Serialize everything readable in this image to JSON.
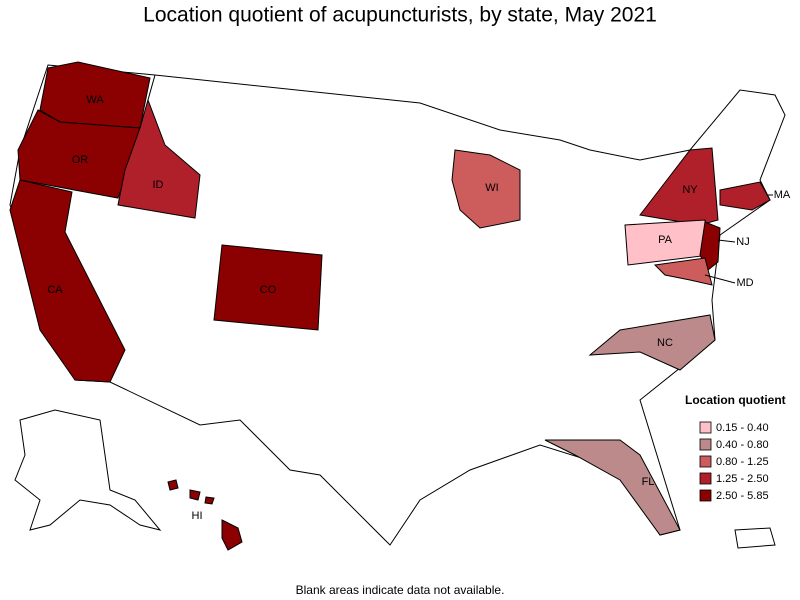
{
  "title": "Location quotient of acupuncturists, by state, May 2021",
  "legend": {
    "title": "Location quotient",
    "items": [
      {
        "label": "0.15 - 0.40",
        "color": "#ffc0c8"
      },
      {
        "label": "0.40 - 0.80",
        "color": "#bc8a8a"
      },
      {
        "label": "0.80 - 1.25",
        "color": "#cd5c5c"
      },
      {
        "label": "1.25 - 2.50",
        "color": "#b0202a"
      },
      {
        "label": "2.50 - 5.85",
        "color": "#8b0000"
      }
    ]
  },
  "states": [
    {
      "label": "WA",
      "class": 4
    },
    {
      "label": "OR",
      "class": 4
    },
    {
      "label": "CA",
      "class": 4
    },
    {
      "label": "ID",
      "class": 3
    },
    {
      "label": "CO",
      "class": 4
    },
    {
      "label": "WI",
      "class": 2
    },
    {
      "label": "NY",
      "class": 3
    },
    {
      "label": "MA",
      "class": 3
    },
    {
      "label": "PA",
      "class": 0
    },
    {
      "label": "NJ",
      "class": 4
    },
    {
      "label": "MD",
      "class": 2
    },
    {
      "label": "NC",
      "class": 1
    },
    {
      "label": "FL",
      "class": 1
    },
    {
      "label": "HI",
      "class": 4
    }
  ],
  "footnote": "Blank areas indicate data not available."
}
